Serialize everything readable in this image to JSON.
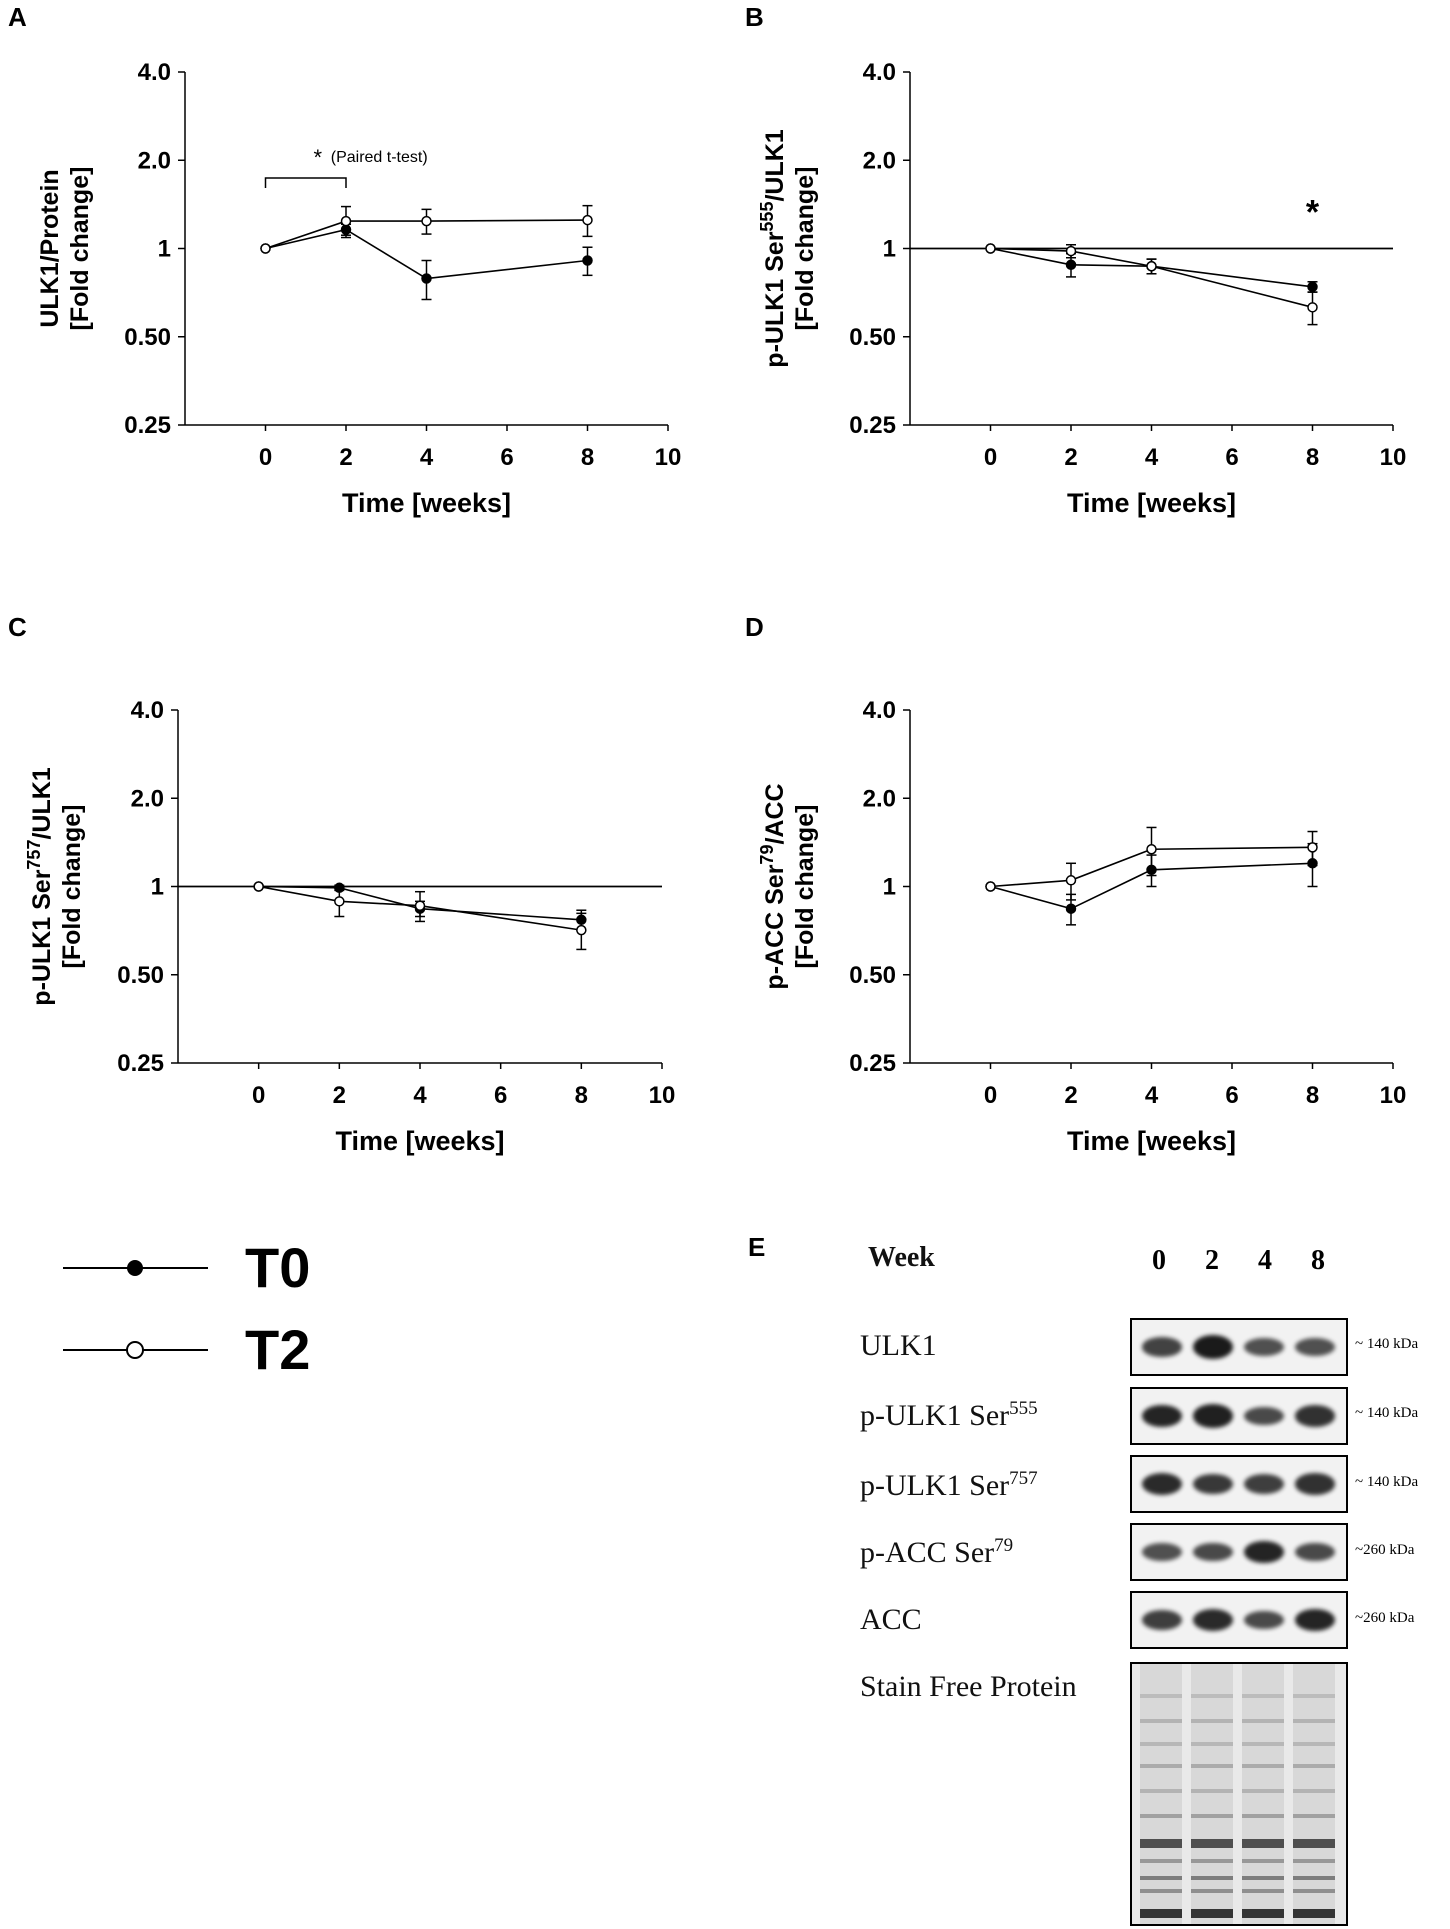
{
  "chart_data": [
    {
      "panel": "A",
      "type": "line",
      "xlabel": "Time [weeks]",
      "ylabel_line1": "ULK1/Protein",
      "ylabel_line2": "[Fold change]",
      "y_scale": "log2",
      "ylim": [
        0.25,
        4.0
      ],
      "yticks": [
        "0.25",
        "0.50",
        "1",
        "2.0",
        "4.0"
      ],
      "xlim": [
        -2,
        10
      ],
      "xticks": [
        "0",
        "2",
        "4",
        "6",
        "8",
        "10"
      ],
      "reference_line": false,
      "annotation": {
        "text": "(Paired t-test)",
        "marker": "*",
        "bracket_x": [
          0,
          2
        ]
      },
      "series": [
        {
          "name": "T0",
          "x": [
            0,
            2,
            4,
            8
          ],
          "y": [
            1.0,
            1.16,
            0.79,
            0.91
          ],
          "err": [
            0.0,
            0.05,
            0.12,
            0.1
          ]
        },
        {
          "name": "T2",
          "x": [
            0,
            2,
            4,
            8
          ],
          "y": [
            1.0,
            1.24,
            1.24,
            1.25
          ],
          "err": [
            0.0,
            0.15,
            0.12,
            0.15
          ]
        }
      ]
    },
    {
      "panel": "B",
      "type": "line",
      "xlabel": "Time [weeks]",
      "ylabel_line1": "p-ULK1 Ser",
      "ylabel_sup": "555",
      "ylabel_line1_after": "/ULK1",
      "ylabel_line2": "[Fold change]",
      "y_scale": "log2",
      "ylim": [
        0.25,
        4.0
      ],
      "yticks": [
        "0.25",
        "0.50",
        "1",
        "2.0",
        "4.0"
      ],
      "xlim": [
        -2,
        10
      ],
      "xticks": [
        "0",
        "2",
        "4",
        "6",
        "8",
        "10"
      ],
      "reference_line": true,
      "significance_marker": {
        "text": "*",
        "x": 8
      },
      "series": [
        {
          "name": "T0",
          "x": [
            0,
            2,
            4,
            8
          ],
          "y": [
            1.0,
            0.88,
            0.87,
            0.74
          ],
          "err": [
            0.0,
            0.08,
            0.05,
            0.03
          ]
        },
        {
          "name": "T2",
          "x": [
            0,
            2,
            4,
            8
          ],
          "y": [
            1.0,
            0.98,
            0.87,
            0.63
          ],
          "err": [
            0.0,
            0.05,
            0.05,
            0.08
          ]
        }
      ]
    },
    {
      "panel": "C",
      "type": "line",
      "xlabel": "Time [weeks]",
      "ylabel_line1": "p-ULK1 Ser",
      "ylabel_sup": "757",
      "ylabel_line1_after": "/ULK1",
      "ylabel_line2": "[Fold change]",
      "y_scale": "log2",
      "ylim": [
        0.25,
        4.0
      ],
      "yticks": [
        "0.25",
        "0.50",
        "1",
        "2.0",
        "4.0"
      ],
      "xlim": [
        -2,
        10
      ],
      "xticks": [
        "0",
        "2",
        "4",
        "6",
        "8",
        "10"
      ],
      "reference_line": true,
      "series": [
        {
          "name": "T0",
          "x": [
            0,
            2,
            4,
            8
          ],
          "y": [
            1.0,
            0.99,
            0.84,
            0.77
          ],
          "err": [
            0.0,
            0.02,
            0.05,
            0.06
          ]
        },
        {
          "name": "T2",
          "x": [
            0,
            2,
            4,
            8
          ],
          "y": [
            1.0,
            0.89,
            0.86,
            0.71
          ],
          "err": [
            0.0,
            0.1,
            0.1,
            0.1
          ]
        }
      ]
    },
    {
      "panel": "D",
      "type": "line",
      "xlabel": "Time [weeks]",
      "ylabel_line1": "p-ACC Ser",
      "ylabel_sup": "79",
      "ylabel_line1_after": "/ACC",
      "ylabel_line2": "[Fold change]",
      "y_scale": "log2",
      "ylim": [
        0.25,
        4.0
      ],
      "yticks": [
        "0.25",
        "0.50",
        "1",
        "2.0",
        "4.0"
      ],
      "xlim": [
        -2,
        10
      ],
      "xticks": [
        "0",
        "2",
        "4",
        "6",
        "8",
        "10"
      ],
      "reference_line": false,
      "series": [
        {
          "name": "T0",
          "x": [
            0,
            2,
            4,
            8
          ],
          "y": [
            1.0,
            0.84,
            1.14,
            1.2
          ],
          "err": [
            0.0,
            0.1,
            0.14,
            0.2
          ]
        },
        {
          "name": "T2",
          "x": [
            0,
            2,
            4,
            8
          ],
          "y": [
            1.0,
            1.05,
            1.34,
            1.36
          ],
          "err": [
            0.0,
            0.15,
            0.25,
            0.18
          ]
        }
      ]
    }
  ],
  "panel_letters": {
    "a": "A",
    "b": "B",
    "c": "C",
    "d": "D",
    "e": "E"
  },
  "legend": {
    "t0": "T0",
    "t2": "T2"
  },
  "blot": {
    "week_label": "Week",
    "weeks": [
      "0",
      "2",
      "4",
      "8"
    ],
    "rows": [
      {
        "label": "ULK1",
        "sup": "",
        "kda": "~ 140 kDa",
        "intensities": [
          0.65,
          1.0,
          0.55,
          0.55
        ]
      },
      {
        "label": "p-ULK1 Ser",
        "sup": "555",
        "kda": "~ 140 kDa",
        "intensities": [
          0.9,
          0.95,
          0.6,
          0.8
        ]
      },
      {
        "label": "p-ULK1 Ser",
        "sup": "757",
        "kda": "~ 140 kDa",
        "intensities": [
          0.85,
          0.75,
          0.7,
          0.8
        ]
      },
      {
        "label": "p-ACC Ser",
        "sup": "79",
        "kda": "~260 kDa",
        "intensities": [
          0.55,
          0.6,
          0.9,
          0.6
        ]
      },
      {
        "label": "ACC",
        "sup": "",
        "kda": "~260 kDa",
        "intensities": [
          0.7,
          0.85,
          0.6,
          0.9
        ]
      }
    ],
    "stain_free_label": "Stain  Free Protein"
  },
  "colors": {
    "line": "#000000",
    "band": "#1a1a1a",
    "blot_bg": "#f2f2f2"
  }
}
